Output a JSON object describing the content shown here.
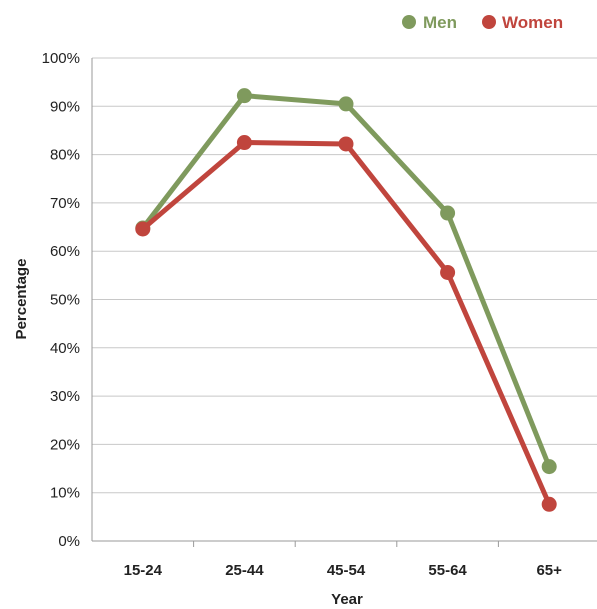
{
  "chart_data": {
    "type": "line",
    "categories": [
      "15-24",
      "25-44",
      "45-54",
      "55-64",
      "65+"
    ],
    "series": [
      {
        "name": "Men",
        "color": "#7f9a5d",
        "values": [
          64.8,
          92.2,
          90.5,
          67.9,
          15.4
        ]
      },
      {
        "name": "Women",
        "color": "#c0453d",
        "values": [
          64.6,
          82.5,
          82.2,
          55.6,
          7.6
        ]
      }
    ],
    "xlabel": "Year",
    "ylabel": "Percentage",
    "ylim": [
      0,
      100
    ],
    "y_ticks": [
      "0%",
      "10%",
      "20%",
      "30%",
      "40%",
      "50%",
      "60%",
      "70%",
      "80%",
      "90%",
      "100%"
    ],
    "grid": true,
    "legend_position": "top-right"
  }
}
